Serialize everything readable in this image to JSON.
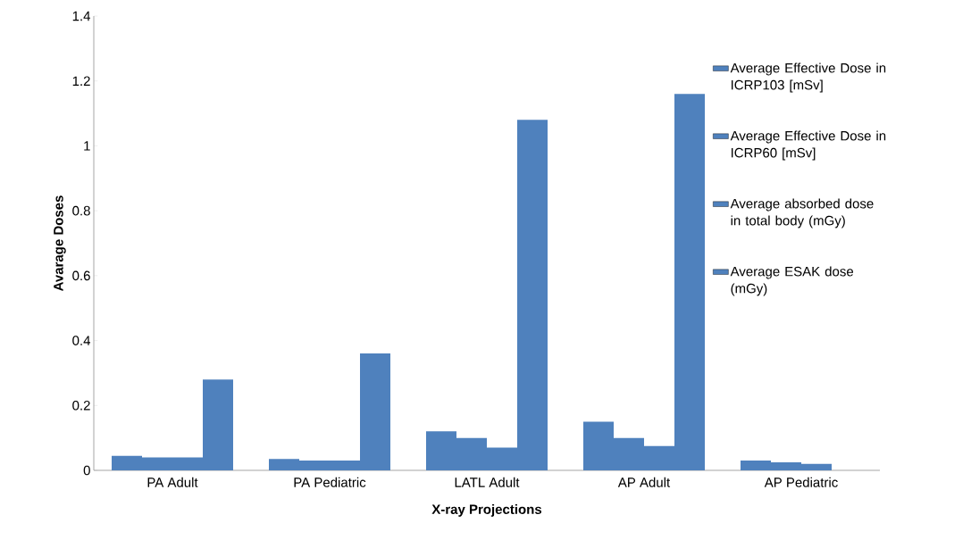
{
  "chart_data": {
    "type": "bar",
    "xlabel": "X-ray Projections",
    "ylabel": "Avarage Doses",
    "categories": [
      "PA Adult",
      "PA Pediatric",
      "LATL Adult",
      "AP Adult",
      "AP Pediatric"
    ],
    "series": [
      {
        "name": "Average Effective Dose in ICRP103 [mSv]",
        "color": "#4f81bd",
        "values": [
          0.045,
          0.035,
          0.12,
          0.15,
          0.03
        ]
      },
      {
        "name": "Average Effective Dose in ICRP60    [mSv]",
        "color": "#4f81bd",
        "values": [
          0.04,
          0.03,
          0.1,
          0.1,
          0.025
        ]
      },
      {
        "name": "Average  absorbed dose in total body (mGy)",
        "color": "#4f81bd",
        "values": [
          0.04,
          0.03,
          0.07,
          0.075,
          0.02
        ]
      },
      {
        "name": "Average ESAK dose (mGy)",
        "color": "#4f81bd",
        "values": [
          0.28,
          0.36,
          1.08,
          1.16,
          0
        ]
      }
    ],
    "ylim": [
      0,
      1.4
    ],
    "yticks": [
      0,
      0.2,
      0.4,
      0.6,
      0.8,
      1,
      1.2,
      1.4
    ],
    "grid": false,
    "legend": "top right"
  }
}
